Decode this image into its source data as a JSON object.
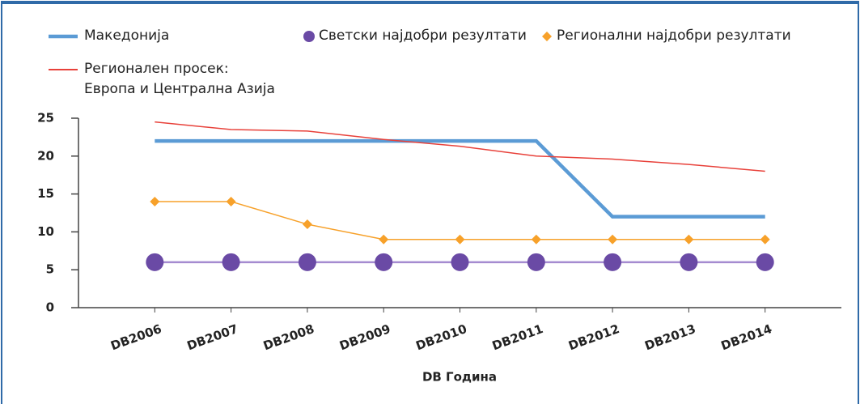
{
  "chart_data": {
    "type": "line",
    "x_label": "DB Година",
    "categories": [
      "DB2006",
      "DB2007",
      "DB2008",
      "DB2009",
      "DB2010",
      "DB2011",
      "DB2012",
      "DB2013",
      "DB2014"
    ],
    "series": [
      {
        "name": "Македонија",
        "color": "#5b9bd5",
        "marker": "none",
        "values": [
          22,
          22,
          22,
          22,
          22,
          22,
          12,
          12,
          12
        ]
      },
      {
        "name": "Регионален просек:\nЕвропа и Централна Азија",
        "color": "#e8413a",
        "marker": "none",
        "values": [
          24.5,
          23.5,
          23.3,
          22.2,
          21.3,
          20,
          19.6,
          18.9,
          18
        ]
      },
      {
        "name": "Светски најдобри резултати",
        "color": "#a58bd0",
        "marker_color": "#6a4aa5",
        "marker": "circle",
        "values": [
          6,
          6,
          6,
          6,
          6,
          6,
          6,
          6,
          6
        ]
      },
      {
        "name": "Регионални најдобри резултати",
        "color": "#f7a12a",
        "marker": "diamond",
        "values": [
          14,
          14,
          11,
          9,
          9,
          9,
          9,
          9,
          9
        ]
      }
    ],
    "ylim": [
      0,
      25
    ],
    "yticks": [
      0,
      5,
      10,
      15,
      20,
      25
    ],
    "grid": false
  }
}
